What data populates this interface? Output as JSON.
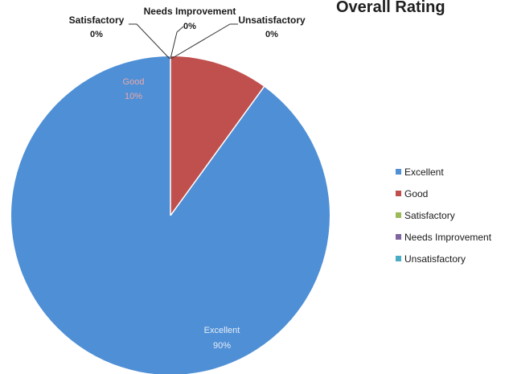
{
  "chart_data": {
    "type": "pie",
    "title": "Overall Rating",
    "slices": [
      {
        "name": "Excellent",
        "value": 90,
        "label": "90%",
        "color": "#4f8fd6"
      },
      {
        "name": "Good",
        "value": 10,
        "label": "10%",
        "color": "#c0504d"
      },
      {
        "name": "Satisfactory",
        "value": 0,
        "label": "0%",
        "color": "#9bbb59"
      },
      {
        "name": "Needs Improvement",
        "value": 0,
        "label": "0%",
        "color": "#8064a2"
      },
      {
        "name": "Unsatisfactory",
        "value": 0,
        "label": "0%",
        "color": "#4bacc6"
      }
    ],
    "legend": {
      "position": "right",
      "items": [
        "Excellent",
        "Good",
        "Satisfactory",
        "Needs Improvement",
        "Unsatisfactory"
      ]
    }
  }
}
